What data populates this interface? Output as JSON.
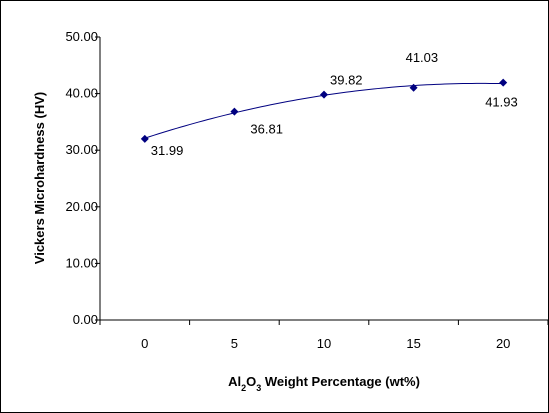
{
  "chart_data": {
    "type": "line",
    "title": "",
    "xlabel_parts": [
      {
        "text": "Al",
        "shift": "normal"
      },
      {
        "text": "2",
        "shift": "sub"
      },
      {
        "text": "O",
        "shift": "normal"
      },
      {
        "text": "3",
        "shift": "sub"
      },
      {
        "text": " Weight Percentage (wt%)",
        "shift": "normal"
      }
    ],
    "ylabel": "Vickers Microhardness (HV)",
    "x_categories": [
      "0",
      "5",
      "10",
      "15",
      "20"
    ],
    "series": [
      {
        "values": [
          31.99,
          36.81,
          39.82,
          41.03,
          41.93
        ],
        "data_labels": [
          "31.99",
          "36.81",
          "39.82",
          "41.03",
          "41.93"
        ],
        "line_color": "#000080",
        "marker_color": "#000080",
        "marker": "diamond",
        "trendline": "polynomial"
      }
    ],
    "y_ticks": [
      "0.00",
      "10.00",
      "20.00",
      "30.00",
      "40.00",
      "50.00"
    ],
    "ylim": [
      0,
      50
    ],
    "grid": false,
    "legend": "none"
  }
}
